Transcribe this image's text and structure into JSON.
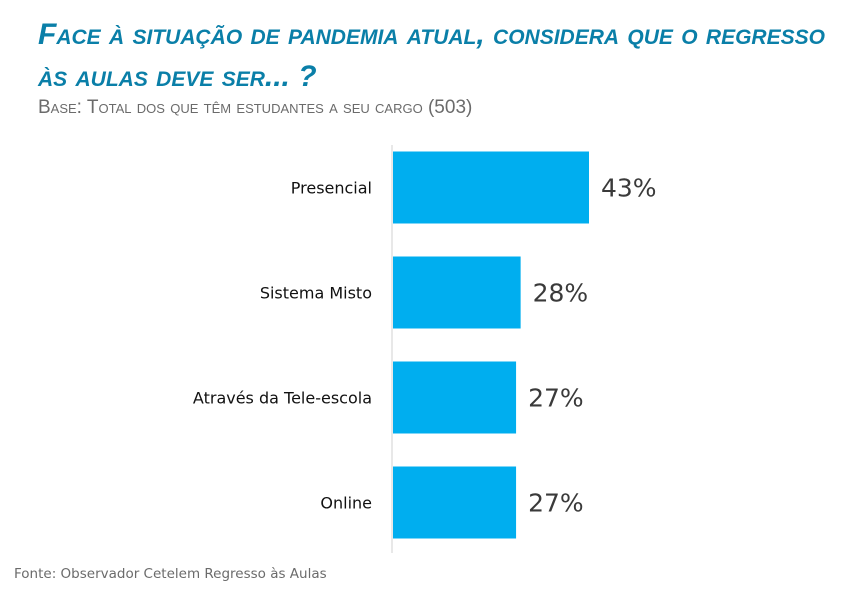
{
  "colors": {
    "bar": "#00AEEF",
    "title": "#0A7FA8",
    "axis": "#d0d0d0"
  },
  "chart_data": {
    "type": "bar",
    "orientation": "horizontal",
    "title": "Face à situação de pandemia atual, considera que o regresso às aulas deve ser... ?",
    "subtitle": "Base: Total dos que têm estudantes a seu cargo (503)",
    "categories": [
      "Presencial",
      "Sistema Misto",
      "Através da Tele-escola",
      "Online"
    ],
    "values": [
      43,
      28,
      27,
      27
    ],
    "value_labels": [
      "43%",
      "28%",
      "27%",
      "27%"
    ],
    "unit": "%",
    "xlim": [
      0,
      100
    ],
    "grid": false,
    "legend": "none"
  },
  "source": "Fonte: Observador Cetelem Regresso às Aulas"
}
